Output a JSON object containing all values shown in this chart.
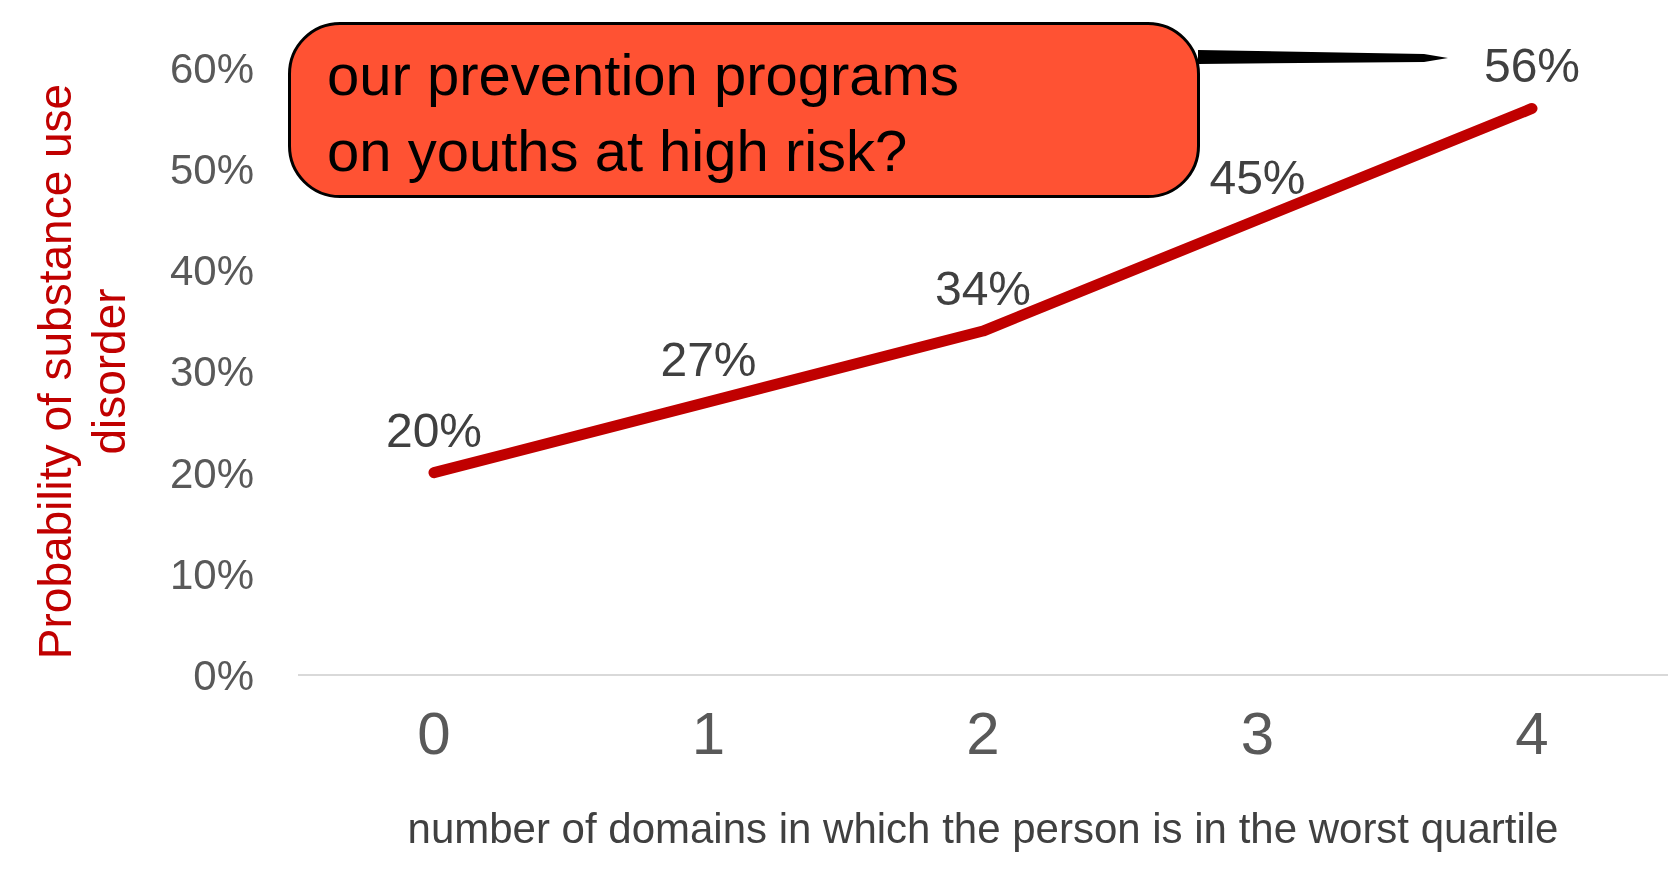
{
  "chart_data": {
    "type": "line",
    "xlabel": "number of domains in which the person is in the worst quartile",
    "ylabel": "Probability of substance use disorder",
    "categories": [
      "0",
      "1",
      "2",
      "3",
      "4"
    ],
    "series": [
      {
        "color": "#c00000",
        "values": [
          20,
          27,
          34,
          45,
          56
        ],
        "value_labels": [
          "20%",
          "27%",
          "34%",
          "45%",
          "56%"
        ]
      }
    ],
    "ylim": [
      0,
      60
    ],
    "yticks": [
      {
        "value": 0,
        "label": "0%"
      },
      {
        "value": 10,
        "label": "10%"
      },
      {
        "value": 20,
        "label": "20%"
      },
      {
        "value": 30,
        "label": "30%"
      },
      {
        "value": 40,
        "label": "40%"
      },
      {
        "value": 50,
        "label": "50%"
      },
      {
        "value": 60,
        "label": "60%"
      }
    ],
    "grid": false,
    "legend": false,
    "marker": "none",
    "line_style": "solid",
    "annotations": [
      "our prevention programs",
      "on youths at high risk?"
    ]
  }
}
